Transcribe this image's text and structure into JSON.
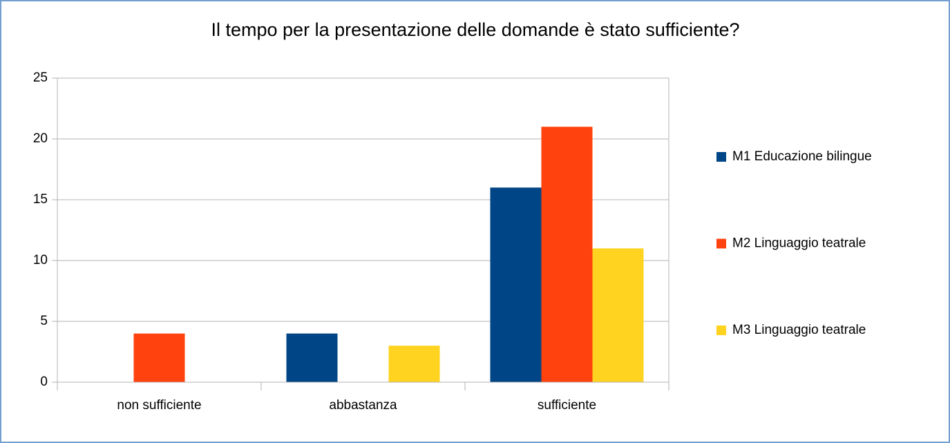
{
  "chart_data": {
    "type": "bar",
    "title": "Il tempo per la presentazione delle domande è stato sufficiente?",
    "categories": [
      "non sufficiente",
      "abbastanza",
      "sufficiente"
    ],
    "series": [
      {
        "name": "M1 Educazione bilingue",
        "color": "#004586",
        "values": [
          0,
          4,
          16
        ]
      },
      {
        "name": "M2 Linguaggio teatrale",
        "color": "#ff420e",
        "values": [
          4,
          0,
          21
        ]
      },
      {
        "name": "M3 Linguaggio teatrale",
        "color": "#ffd320",
        "values": [
          0,
          3,
          11
        ]
      }
    ],
    "ylim": [
      0,
      25
    ],
    "yticks": [
      0,
      5,
      10,
      15,
      20,
      25
    ],
    "grid": true,
    "legend": "right"
  }
}
